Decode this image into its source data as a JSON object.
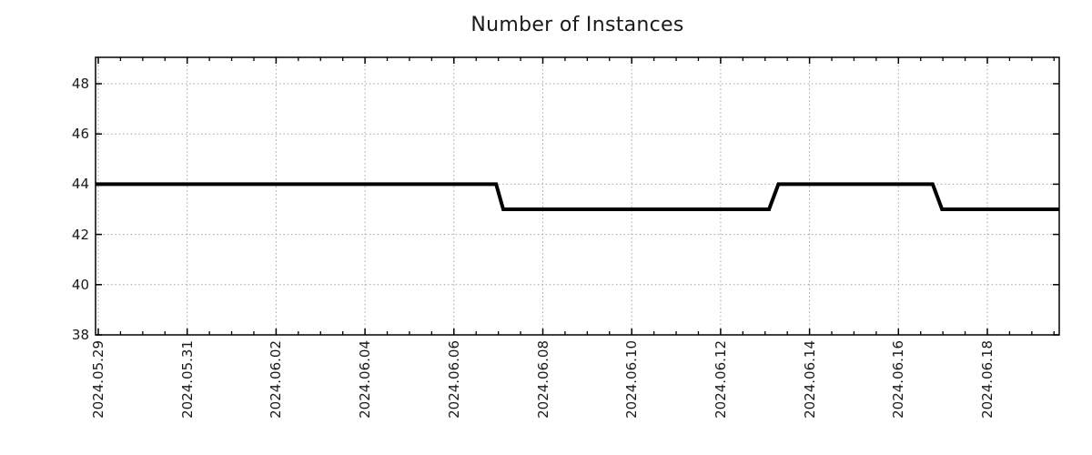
{
  "chart_data": {
    "type": "line",
    "title": "Number of Instances",
    "grid": true,
    "legend": "none",
    "colors": {
      "line": "#000000",
      "grid": "#a2a2a2",
      "axis": "#000000",
      "text": "#1a1a1a",
      "background": "#ffffff"
    },
    "x_axis": {
      "unit": "date",
      "minor_tick_interval_days": 0.5,
      "range_days_from_first_tick": [
        -0.06,
        21.62
      ],
      "ticks": [
        {
          "label": "2024.05.29",
          "day": 0
        },
        {
          "label": "2024.05.31",
          "day": 2
        },
        {
          "label": "2024.06.02",
          "day": 4
        },
        {
          "label": "2024.06.04",
          "day": 6
        },
        {
          "label": "2024.06.06",
          "day": 8
        },
        {
          "label": "2024.06.08",
          "day": 10
        },
        {
          "label": "2024.06.10",
          "day": 12
        },
        {
          "label": "2024.06.12",
          "day": 14
        },
        {
          "label": "2024.06.14",
          "day": 16
        },
        {
          "label": "2024.06.16",
          "day": 18
        },
        {
          "label": "2024.06.18",
          "day": 20
        }
      ]
    },
    "y_axis": {
      "ticks": [
        38,
        40,
        42,
        44,
        46,
        48
      ],
      "range": [
        38,
        49.05
      ],
      "gridline_values": [
        40,
        42,
        44,
        46,
        48
      ]
    },
    "series": [
      {
        "name": "instances",
        "points": [
          {
            "date": "2024.05.29",
            "day": -0.06,
            "value": 44
          },
          {
            "date": "2024.06.07",
            "day": 8.95,
            "value": 44
          },
          {
            "date": "2024.06.07",
            "day": 9.11,
            "value": 43
          },
          {
            "date": "2024.06.13",
            "day": 15.09,
            "value": 43
          },
          {
            "date": "2024.06.13",
            "day": 15.3,
            "value": 44
          },
          {
            "date": "2024.06.16",
            "day": 18.77,
            "value": 44
          },
          {
            "date": "2024.06.17",
            "day": 18.98,
            "value": 43
          },
          {
            "date": "2024.06.19",
            "day": 21.62,
            "value": 43
          }
        ]
      }
    ],
    "summary_segments": [
      {
        "from": "2024.05.29",
        "to": "2024.06.07",
        "value": 44
      },
      {
        "from": "2024.06.07",
        "to": "2024.06.13",
        "value": 43
      },
      {
        "from": "2024.06.13",
        "to": "2024.06.17",
        "value": 44
      },
      {
        "from": "2024.06.17",
        "to": "2024.06.19",
        "value": 43
      }
    ]
  }
}
